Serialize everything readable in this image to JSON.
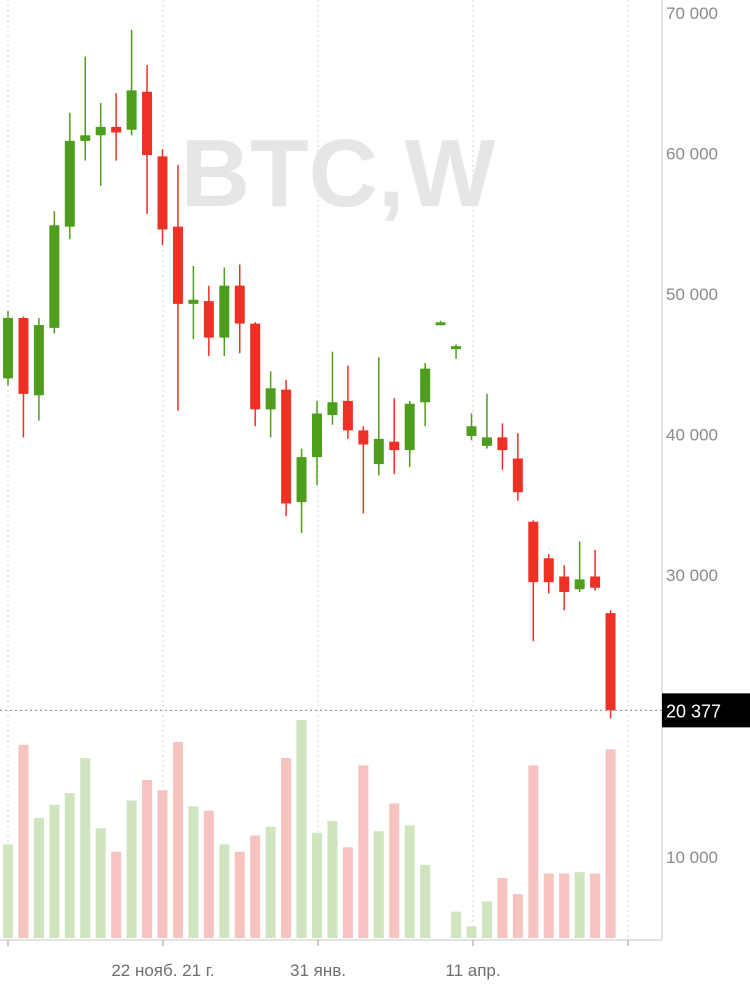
{
  "chart_data": {
    "type": "candlestick",
    "watermark": "BTC,W",
    "current_price_label": "20 377",
    "current_price": 20377,
    "colors": {
      "up": "#4f9d1c",
      "down": "#ee3124",
      "volume_up": "#cfe4bf",
      "volume_down": "#f7c3c0",
      "grid": "#d4d4d4",
      "price_label_bg": "#000000"
    },
    "price_ticks": [
      {
        "value": 70000,
        "label": "70 000"
      },
      {
        "value": 60000,
        "label": "60 000"
      },
      {
        "value": 50000,
        "label": "50 000"
      },
      {
        "value": 40000,
        "label": "40 000"
      },
      {
        "value": 30000,
        "label": "30 000"
      }
    ],
    "volume_tick": {
      "label": "10 000"
    },
    "x_ticks": [
      "22 нояб. 21 г.",
      "31 янв.",
      "11 апр."
    ],
    "candles": [
      {
        "o": 44000,
        "h": 48800,
        "l": 43500,
        "c": 48300
      },
      {
        "o": 48300,
        "h": 48400,
        "l": 39800,
        "c": 42900
      },
      {
        "o": 42800,
        "h": 48300,
        "l": 41000,
        "c": 47800
      },
      {
        "o": 47600,
        "h": 55900,
        "l": 47200,
        "c": 54900
      },
      {
        "o": 54800,
        "h": 62900,
        "l": 53900,
        "c": 60900
      },
      {
        "o": 60900,
        "h": 66900,
        "l": 59500,
        "c": 61300
      },
      {
        "o": 61300,
        "h": 63600,
        "l": 57700,
        "c": 61900
      },
      {
        "o": 61900,
        "h": 64300,
        "l": 59500,
        "c": 61500
      },
      {
        "o": 61700,
        "h": 68800,
        "l": 61300,
        "c": 64500
      },
      {
        "o": 64400,
        "h": 66300,
        "l": 55700,
        "c": 59900
      },
      {
        "o": 59800,
        "h": 60300,
        "l": 53500,
        "c": 54600
      },
      {
        "o": 54800,
        "h": 59200,
        "l": 41700,
        "c": 49300
      },
      {
        "o": 49300,
        "h": 52000,
        "l": 46800,
        "c": 49600
      },
      {
        "o": 49500,
        "h": 50600,
        "l": 45600,
        "c": 46900
      },
      {
        "o": 46900,
        "h": 51900,
        "l": 45600,
        "c": 50600
      },
      {
        "o": 50600,
        "h": 52100,
        "l": 45800,
        "c": 47900
      },
      {
        "o": 47900,
        "h": 48000,
        "l": 40600,
        "c": 41800
      },
      {
        "o": 41800,
        "h": 44500,
        "l": 39800,
        "c": 43300
      },
      {
        "o": 43200,
        "h": 43900,
        "l": 34200,
        "c": 35100
      },
      {
        "o": 35200,
        "h": 39000,
        "l": 33000,
        "c": 38400
      },
      {
        "o": 38400,
        "h": 42400,
        "l": 36400,
        "c": 41500
      },
      {
        "o": 41400,
        "h": 45900,
        "l": 40700,
        "c": 42300
      },
      {
        "o": 42400,
        "h": 44900,
        "l": 39700,
        "c": 40300
      },
      {
        "o": 40300,
        "h": 40600,
        "l": 34400,
        "c": 39300
      },
      {
        "o": 37900,
        "h": 45500,
        "l": 37100,
        "c": 39700
      },
      {
        "o": 39500,
        "h": 42600,
        "l": 37200,
        "c": 38900
      },
      {
        "o": 38900,
        "h": 42400,
        "l": 37700,
        "c": 42200
      },
      {
        "o": 42300,
        "h": 45100,
        "l": 40600,
        "c": 44700
      },
      {
        "o": 47900,
        "h": 48100,
        "l": 47800,
        "c": 48000
      },
      {
        "o": 46200,
        "h": 46400,
        "l": 45400,
        "c": 46300
      },
      {
        "o": 39900,
        "h": 41500,
        "l": 39600,
        "c": 40600
      },
      {
        "o": 39200,
        "h": 42900,
        "l": 39000,
        "c": 39800
      },
      {
        "o": 39800,
        "h": 40800,
        "l": 37500,
        "c": 38900
      },
      {
        "o": 38300,
        "h": 40100,
        "l": 35300,
        "c": 35900
      },
      {
        "o": 33800,
        "h": 33900,
        "l": 25300,
        "c": 29500
      },
      {
        "o": 31200,
        "h": 31500,
        "l": 28700,
        "c": 29500
      },
      {
        "o": 29900,
        "h": 30700,
        "l": 27500,
        "c": 28800
      },
      {
        "o": 29000,
        "h": 32400,
        "l": 28800,
        "c": 29700
      },
      {
        "o": 29900,
        "h": 31800,
        "l": 28900,
        "c": 29100
      },
      {
        "o": 27300,
        "h": 27500,
        "l": 19800,
        "c": 20377
      }
    ],
    "volumes": [
      6400,
      13200,
      8200,
      9100,
      9900,
      12300,
      7500,
      5900,
      9400,
      10800,
      10100,
      13400,
      9000,
      8700,
      6400,
      5900,
      7000,
      7600,
      12300,
      14900,
      7200,
      8000,
      6200,
      11800,
      7300,
      9200,
      7700,
      5000,
      0,
      1800,
      800,
      2500,
      4100,
      3000,
      11800,
      4400,
      4400,
      4500,
      4400,
      12900
    ]
  }
}
